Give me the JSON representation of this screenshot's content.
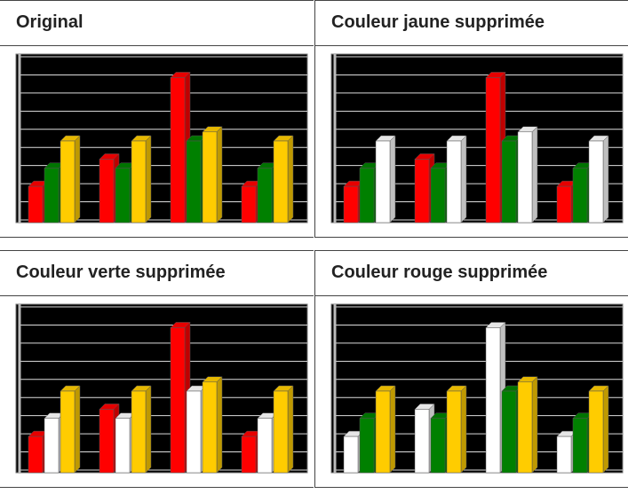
{
  "chart_data": [
    {
      "type": "bar",
      "title": "Original",
      "categories": [
        null,
        null,
        null,
        null
      ],
      "ylim": [
        0,
        9
      ],
      "yticks": [
        0,
        1,
        2,
        3,
        4,
        5,
        6,
        7,
        8,
        9
      ],
      "grid": true,
      "series": [
        {
          "color": "#ff0000",
          "values": [
            2,
            3.5,
            8,
            2
          ]
        },
        {
          "color": "#008000",
          "values": [
            3,
            3,
            4.5,
            3
          ]
        },
        {
          "color": "#ffcc00",
          "values": [
            4.5,
            4.5,
            5,
            4.5
          ]
        }
      ]
    },
    {
      "type": "bar",
      "title": "Couleur jaune supprimée",
      "categories": [
        null,
        null,
        null,
        null
      ],
      "ylim": [
        0,
        9
      ],
      "yticks": [
        0,
        1,
        2,
        3,
        4,
        5,
        6,
        7,
        8,
        9
      ],
      "grid": true,
      "series": [
        {
          "color": "#ff0000",
          "values": [
            2,
            3.5,
            8,
            2
          ]
        },
        {
          "color": "#008000",
          "values": [
            3,
            3,
            4.5,
            3
          ]
        },
        {
          "color": "#ffffff",
          "values": [
            4.5,
            4.5,
            5,
            4.5
          ]
        }
      ]
    },
    {
      "type": "bar",
      "title": "Couleur verte supprimée",
      "categories": [
        null,
        null,
        null,
        null
      ],
      "ylim": [
        0,
        9
      ],
      "yticks": [
        0,
        1,
        2,
        3,
        4,
        5,
        6,
        7,
        8,
        9
      ],
      "grid": true,
      "series": [
        {
          "color": "#ff0000",
          "values": [
            2,
            3.5,
            8,
            2
          ]
        },
        {
          "color": "#ffffff",
          "values": [
            3,
            3,
            4.5,
            3
          ]
        },
        {
          "color": "#ffcc00",
          "values": [
            4.5,
            4.5,
            5,
            4.5
          ]
        }
      ]
    },
    {
      "type": "bar",
      "title": "Couleur rouge supprimée",
      "categories": [
        null,
        null,
        null,
        null
      ],
      "ylim": [
        0,
        9
      ],
      "yticks": [
        0,
        1,
        2,
        3,
        4,
        5,
        6,
        7,
        8,
        9
      ],
      "grid": true,
      "series": [
        {
          "color": "#ffffff",
          "values": [
            2,
            3.5,
            8,
            2
          ]
        },
        {
          "color": "#008000",
          "values": [
            3,
            3,
            4.5,
            3
          ]
        },
        {
          "color": "#ffcc00",
          "values": [
            4.5,
            4.5,
            5,
            4.5
          ]
        }
      ]
    }
  ]
}
